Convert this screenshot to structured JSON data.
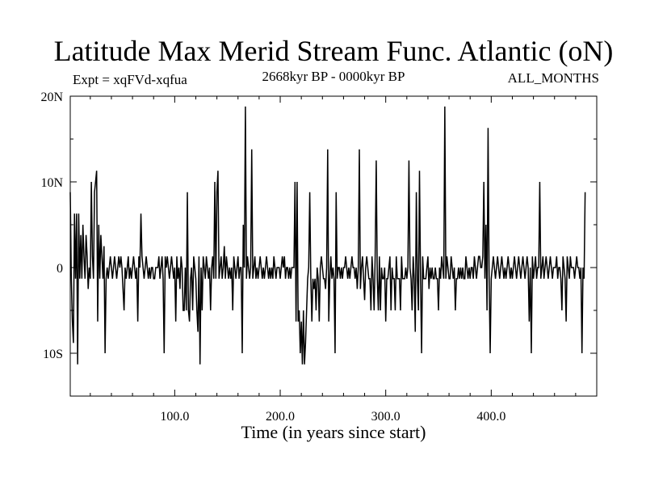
{
  "header": {
    "title": "Latitude Max Merid Stream Func. Atlantic (oN)",
    "experiment": "Expt = xqFVd-xqfua",
    "period": "2668kyr BP - 0000kyr BP",
    "months": "ALL_MONTHS"
  },
  "chart_data": {
    "type": "line",
    "title": "Latitude Max Merid Stream Func. Atlantic (oN)",
    "xlabel": "Time (in years since start)",
    "ylabel": "",
    "xlim": [
      1,
      500
    ],
    "ylim": [
      -15,
      20
    ],
    "x_ticks": [
      100,
      200,
      300,
      400
    ],
    "x_tick_labels": [
      "100.0",
      "200.0",
      "300.0",
      "400.0"
    ],
    "y_ticks": [
      20,
      10,
      0,
      -10
    ],
    "y_tick_labels": [
      "20N",
      "10N",
      "0",
      "10S"
    ],
    "grid": false,
    "series": [
      {
        "x_start": 1,
        "x_step": 1,
        "values": [
          8.8,
          -1.3,
          -6.3,
          -8.8,
          6.3,
          -1.3,
          6.3,
          -11.3,
          6.3,
          -1.3,
          3.8,
          -1.3,
          5.0,
          1.3,
          -1.3,
          3.8,
          1.3,
          -2.5,
          0,
          -1.3,
          10.0,
          1.3,
          -1.3,
          8.8,
          10.0,
          11.3,
          -6.3,
          5.0,
          -1.3,
          3.8,
          1.3,
          -1.3,
          2.5,
          -10.0,
          -1.3,
          0,
          -1.3,
          0,
          1.3,
          0,
          -1.3,
          0,
          1.3,
          0,
          -1.3,
          0,
          1.3,
          0,
          1.3,
          0,
          -2.5,
          -5.0,
          0,
          -1.3,
          0,
          1.3,
          -1.3,
          0,
          -1.3,
          0,
          1.3,
          0,
          -1.3,
          0,
          -6.3,
          1.3,
          0,
          6.3,
          1.3,
          0,
          -1.3,
          0,
          1.3,
          0,
          -1.3,
          0,
          -1.3,
          0,
          0,
          -1.3,
          -1.3,
          0,
          0,
          0,
          1.3,
          -1.3,
          0,
          1.3,
          -1.3,
          -10.0,
          1.3,
          0,
          1.3,
          0,
          -1.3,
          0,
          1.3,
          0,
          -1.3,
          0,
          -6.3,
          1.3,
          -1.3,
          0,
          -2.5,
          1.3,
          0,
          -5.0,
          -5.0,
          0,
          -5.0,
          8.8,
          -5.0,
          -6.3,
          -1.3,
          0,
          -5.0,
          1.3,
          0,
          -1.3,
          -5.0,
          -7.5,
          1.3,
          -11.3,
          0,
          -5.0,
          1.3,
          0,
          -1.3,
          1.3,
          0,
          -1.3,
          0,
          -5.0,
          0,
          1.3,
          -1.3,
          10.0,
          -1.3,
          8.8,
          11.3,
          -1.3,
          0,
          1.3,
          -1.3,
          0,
          2.5,
          -1.3,
          1.3,
          0,
          -1.3,
          0,
          -1.3,
          0,
          -5.0,
          1.3,
          0,
          -1.3,
          0,
          1.3,
          -1.3,
          0,
          0,
          -10.0,
          5.0,
          0,
          18.8,
          -1.3,
          1.3,
          0,
          -1.3,
          0,
          13.8,
          -1.3,
          0,
          1.3,
          -1.3,
          0,
          -1.3,
          0,
          1.3,
          0,
          -1.3,
          0,
          -1.3,
          0,
          1.3,
          0,
          -1.3,
          0,
          -1.3,
          0,
          -1.3,
          1.3,
          0,
          -1.3,
          0,
          0,
          0,
          -1.3,
          0,
          1.3,
          0,
          1.3,
          -1.3,
          0,
          0,
          -1.3,
          0,
          -1.3,
          0,
          0,
          0,
          10.0,
          -6.3,
          10.0,
          -6.3,
          -5.0,
          -10.0,
          -6.3,
          -11.3,
          -5.0,
          -11.3,
          -8.8,
          -5.0,
          -1.3,
          0,
          8.8,
          -1.3,
          -6.3,
          -1.3,
          -2.5,
          -1.3,
          -5.0,
          0,
          -1.3,
          -6.3,
          0,
          1.3,
          0,
          -1.3,
          -1.3,
          -2.5,
          0,
          13.8,
          -6.3,
          -1.3,
          1.3,
          -1.3,
          0,
          -1.3,
          -10.0,
          8.8,
          -1.3,
          0,
          0,
          -1.3,
          0,
          -1.3,
          0,
          0,
          1.3,
          0,
          -1.3,
          0,
          -1.3,
          0,
          1.3,
          0,
          0,
          -1.3,
          0,
          -2.5,
          0,
          13.8,
          -2.5,
          0,
          1.3,
          -1.3,
          -3.8,
          0,
          1.3,
          0,
          -1.3,
          -1.3,
          -5.0,
          1.3,
          -1.3,
          -5.0,
          1.3,
          12.5,
          -1.3,
          -5.0,
          1.3,
          -5.0,
          0,
          -1.3,
          -1.3,
          0,
          -6.3,
          -1.3,
          -1.3,
          0,
          1.3,
          -5.0,
          0,
          -1.3,
          -1.3,
          -5.0,
          1.3,
          -1.3,
          -1.3,
          -1.3,
          -5.0,
          1.3,
          -1.3,
          -1.3,
          -1.3,
          0,
          -1.3,
          0,
          12.5,
          0,
          -1.3,
          -5.0,
          1.3,
          -1.3,
          -7.5,
          8.8,
          -1.3,
          -5.0,
          11.3,
          -1.3,
          -10.0,
          1.3,
          -1.3,
          -1.3,
          -1.3,
          0,
          1.3,
          -2.5,
          0,
          -1.3,
          0,
          -1.3,
          -1.3,
          0,
          -1.3,
          -1.3,
          -5.0,
          0,
          -1.3,
          1.3,
          0,
          -1.3,
          18.8,
          -1.3,
          1.3,
          0,
          -1.3,
          -1.3,
          1.3,
          0,
          -1.3,
          0,
          -5.0,
          -1.3,
          -1.3,
          0,
          -1.3,
          0,
          -1.3,
          0,
          -1.3,
          -1.3,
          1.3,
          0,
          -1.3,
          0,
          -1.3,
          0,
          0,
          -1.3,
          1.3,
          0,
          -1.3,
          0,
          1.3,
          1.3,
          0,
          0,
          1.3,
          10.0,
          -1.3,
          5.0,
          -5.0,
          16.3,
          -1.3,
          -10.0,
          -1.3,
          0,
          1.3,
          0,
          -1.3,
          0,
          1.3,
          0,
          -1.3,
          0,
          1.3,
          0,
          -1.3,
          0,
          -1.3,
          0,
          1.3,
          0,
          -1.3,
          0,
          -1.3,
          0,
          1.3,
          0,
          -1.3,
          0,
          1.3,
          0,
          -1.3,
          0,
          1.3,
          0,
          -1.3,
          0,
          1.3,
          0,
          -6.3,
          0,
          -10.0,
          1.3,
          -1.3,
          0,
          1.3,
          -1.3,
          0,
          0,
          10.0,
          -1.3,
          0,
          1.3,
          -1.3,
          0,
          1.3,
          0,
          -1.3,
          0,
          1.3,
          0,
          -1.3,
          0,
          0,
          0,
          1.3,
          -1.3,
          0,
          0,
          -1.3,
          -5.0,
          1.3,
          0,
          -1.3,
          -6.3,
          1.3,
          0,
          -1.3,
          1.3,
          0,
          0,
          0,
          -1.3,
          0,
          1.3,
          0,
          0,
          -1.3,
          0,
          -10.0,
          0,
          -1.3,
          8.8
        ]
      }
    ]
  }
}
